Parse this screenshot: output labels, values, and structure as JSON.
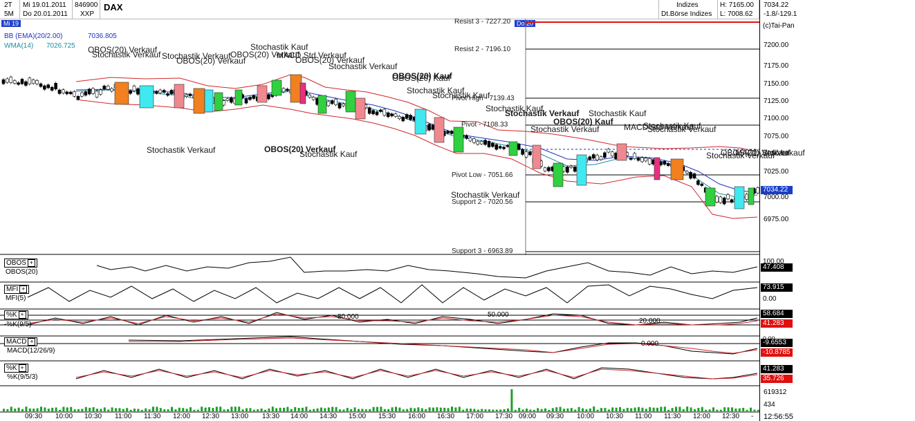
{
  "header": {
    "timeframe_1": "2T",
    "timeframe_2": "5M",
    "date_1": "Mi 19.01.2011",
    "date_2": "Do 20.01.2011",
    "symbol_code": "846900",
    "exchange_code": "XXP",
    "title": "DAX",
    "category": "Indizes",
    "exchange": "Dt.Börse Indizes",
    "high": "H: 7165.00",
    "low": "L: 7008.62",
    "last": "7034.22",
    "change": "-1.8/-129.1",
    "copyright": "(c)Tai-Pan",
    "day_tag_1": "Mi 19",
    "day_tag_2": "Do 20"
  },
  "indicators": {
    "bb_label": "BB (EMA)(20/2.00)",
    "bb_value": "7036.805",
    "wma_label": "WMA(14)",
    "wma_value": "7026.725"
  },
  "levels": [
    {
      "label": "Resist 3 - 7227.20"
    },
    {
      "label": "Resist 2 - 7196.10"
    },
    {
      "label": "Pivot High - 7139.43"
    },
    {
      "label": "Pivot - 7108.33"
    },
    {
      "label": "Pivot Low - 7051.66"
    },
    {
      "label": "Support 2 - 7020.56"
    },
    {
      "label": "Support 3 - 6963.89"
    }
  ],
  "price_axis": [
    "7200.00",
    "7175.00",
    "7150.00",
    "7125.00",
    "7100.00",
    "7075.00",
    "7050.00",
    "7025.00",
    "7000.00",
    "6975.00"
  ],
  "current_price": "7034.22",
  "annotations": [
    "OBOS(20) Verkauf",
    "Stochastik Verkauf",
    "Stochastik Kauf",
    "Stochastik Verkauf",
    "OBOS(20) Verkauf",
    "OBOS(20) Verkauf",
    "MACD Std Verkauf",
    "OBOS(20) Verkauf",
    "Stochastik Verkauf",
    "OBOS(20) Kauf",
    "OBOS(20) Kauf",
    "Stochastik Kauf",
    "Stochastik Kauf",
    "Stochastik Kauf",
    "Stochastik Verkauf",
    "Stochastik Kauf",
    "Stochastik Verkauf",
    "OBOS(20) Kauf",
    "Stochastik Kauf",
    "MACD Std Verkauf",
    "Stochastik Verkauf",
    "Stochastik Verkauf",
    "OBOS(20) Verkauf",
    "OBOS(20) Verkauf",
    "Stochastik Kauf",
    "Stochastik Verkauf",
    "Stochastik Verkauf",
    "MACD Std Verkauf"
  ],
  "panels": {
    "obos": {
      "button": "OBOS",
      "label": "OBOS(20)",
      "value": "47.408",
      "top_tick": "100.00"
    },
    "mfi": {
      "button": "MFI",
      "label": "MFI(5)",
      "value": "73.915",
      "low_tick": "0.00"
    },
    "stoch": {
      "button": "%K",
      "label": "-%K(9/5)",
      "value_1": "58.684",
      "value_2": "41.283",
      "lvl_80": "80.000",
      "lvl_50": "50.000",
      "lvl_20": "20.000"
    },
    "macd": {
      "button": "MACD",
      "label": "MACD(12/26/9)",
      "value_1": "-9.6553",
      "value_2": "-10.8785",
      "zero": "0.000",
      "top_tick": "0.00"
    },
    "stoch2": {
      "button": "%K",
      "label": "%K(9/5/3)",
      "value_1": "41.283",
      "value_2": "35.726"
    },
    "volume": {
      "value_1": "619312",
      "value_2": "434"
    }
  },
  "time_axis": [
    "09:30",
    "10:00",
    "10:30",
    "11:00",
    "11:30",
    "12:00",
    "12:30",
    "13:00",
    "13:30",
    "14:00",
    "14:30",
    "15:00",
    "15:30",
    "16:00",
    "16:30",
    "17:00",
    "17:30",
    "09:00",
    "09:30",
    "10:00",
    "10:30",
    "11:00",
    "11:30",
    "12:00",
    "12:30",
    "-"
  ],
  "clock": "12:56:55",
  "colors": {
    "bollinger": "#d0262b",
    "wma": "#1a8fa0",
    "ema": "#2030c0",
    "volume": "#1e9e2a",
    "highlight_red": "#e01010",
    "current_price_bg": "#1a3ec8"
  }
}
